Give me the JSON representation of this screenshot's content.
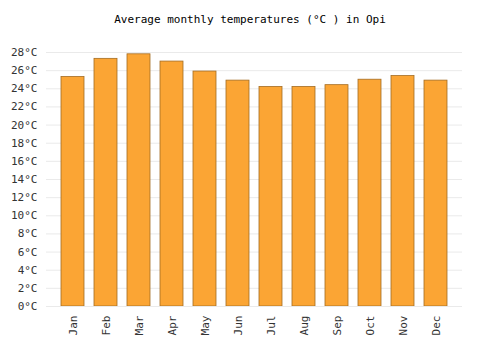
{
  "chart_data": {
    "type": "bar",
    "title": "Average monthly temperatures (°C ) in Opi",
    "categories": [
      "Jan",
      "Feb",
      "Mar",
      "Apr",
      "May",
      "Jun",
      "Jul",
      "Aug",
      "Sep",
      "Oct",
      "Nov",
      "Dec"
    ],
    "values": [
      25.3,
      27.3,
      27.8,
      27.0,
      25.9,
      24.9,
      24.2,
      24.2,
      24.4,
      25.0,
      25.4,
      24.9
    ],
    "color": "#fba534",
    "ylim": [
      0,
      28
    ],
    "yticks": [
      {
        "value": 0,
        "label": "0°C"
      },
      {
        "value": 2,
        "label": "2°C"
      },
      {
        "value": 4,
        "label": "4°C"
      },
      {
        "value": 6,
        "label": "6°C"
      },
      {
        "value": 8,
        "label": "8°C"
      },
      {
        "value": 10,
        "label": "10°C"
      },
      {
        "value": 12,
        "label": "12°C"
      },
      {
        "value": 14,
        "label": "14°C"
      },
      {
        "value": 16,
        "label": "16°C"
      },
      {
        "value": 18,
        "label": "18°C"
      },
      {
        "value": 20,
        "label": "20°C"
      },
      {
        "value": 22,
        "label": "22°C"
      },
      {
        "value": 24,
        "label": "24°C"
      },
      {
        "value": 26,
        "label": "26°C"
      },
      {
        "value": 28,
        "label": "28°C"
      }
    ],
    "grid": true
  }
}
